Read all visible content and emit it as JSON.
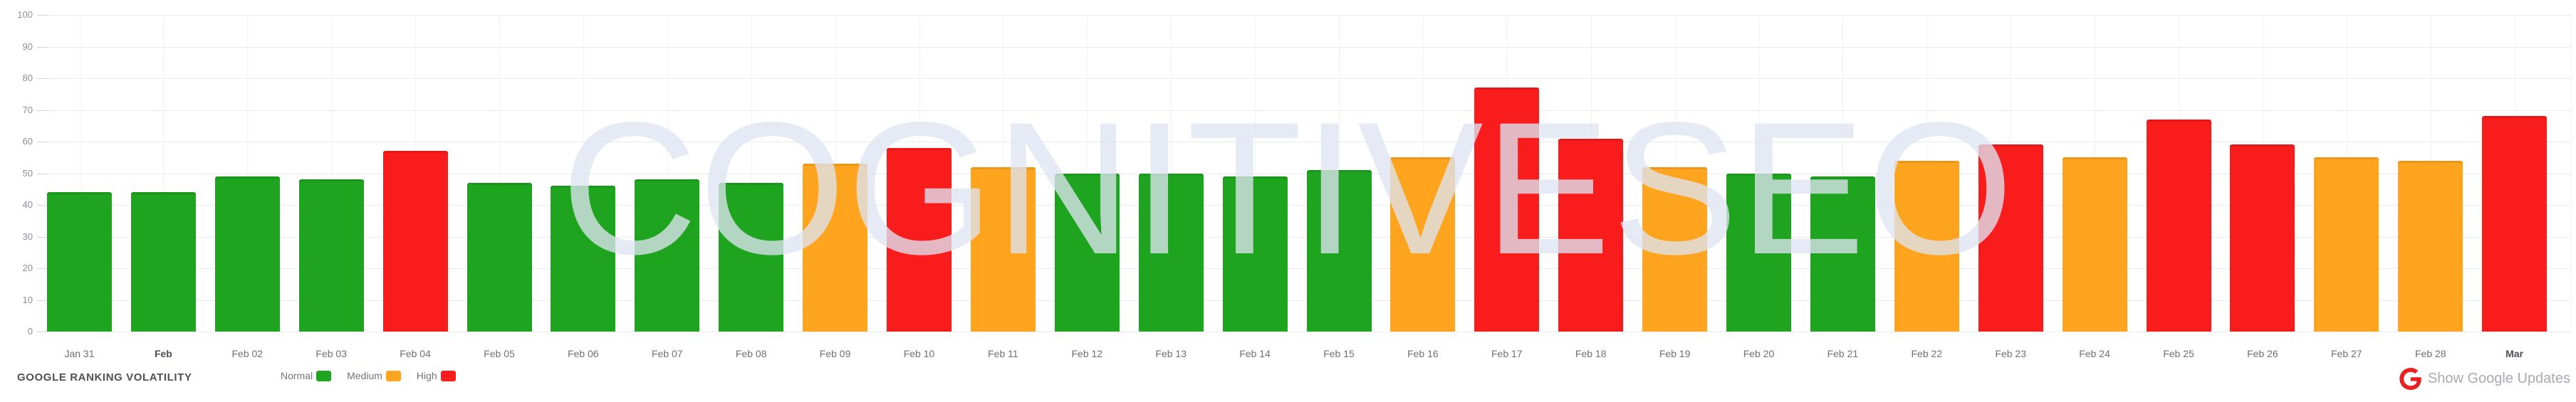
{
  "watermark_text": "COGNITIVESEO",
  "colors": {
    "normal": "#1ea41e",
    "medium": "#ffa41e",
    "high": "#f91c1c",
    "google_g": "#ea2020",
    "watermark": "#e9edf5"
  },
  "chart_data": {
    "type": "bar",
    "title": "GOOGLE RANKING VOLATILITY",
    "categories": [
      "Jan 31",
      "Feb",
      "Feb 02",
      "Feb 03",
      "Feb 04",
      "Feb 05",
      "Feb 06",
      "Feb 07",
      "Feb 08",
      "Feb 09",
      "Feb 10",
      "Feb 11",
      "Feb 12",
      "Feb 13",
      "Feb 14",
      "Feb 15",
      "Feb 16",
      "Feb 17",
      "Feb 18",
      "Feb 19",
      "Feb 20",
      "Feb 21",
      "Feb 22",
      "Feb 23",
      "Feb 24",
      "Feb 25",
      "Feb 26",
      "Feb 27",
      "Feb 28",
      "Mar"
    ],
    "bold_categories": [
      "Feb",
      "Mar"
    ],
    "values": [
      44,
      44,
      49,
      48,
      57,
      47,
      46,
      48,
      47,
      53,
      58,
      52,
      50,
      50,
      49,
      51,
      55,
      77,
      61,
      52,
      50,
      49,
      54,
      59,
      55,
      67,
      59,
      55,
      54,
      68
    ],
    "levels": [
      "normal",
      "normal",
      "normal",
      "normal",
      "high",
      "normal",
      "normal",
      "normal",
      "normal",
      "medium",
      "high",
      "medium",
      "normal",
      "normal",
      "normal",
      "normal",
      "medium",
      "high",
      "high",
      "medium",
      "normal",
      "normal",
      "medium",
      "high",
      "medium",
      "high",
      "high",
      "medium",
      "medium",
      "high"
    ],
    "xlabel": "",
    "ylabel": "",
    "ylim": [
      0,
      100
    ],
    "y_ticks": [
      0,
      10,
      20,
      30,
      40,
      50,
      60,
      70,
      80,
      90,
      100
    ],
    "grid": true,
    "legend_position": "bottom-left"
  },
  "legend": {
    "items": [
      {
        "label": "Normal",
        "level": "normal"
      },
      {
        "label": "Medium",
        "level": "medium"
      },
      {
        "label": "High",
        "level": "high"
      }
    ],
    "google_updates_label": "Show Google Updates",
    "google_icon": "google-g-icon"
  }
}
